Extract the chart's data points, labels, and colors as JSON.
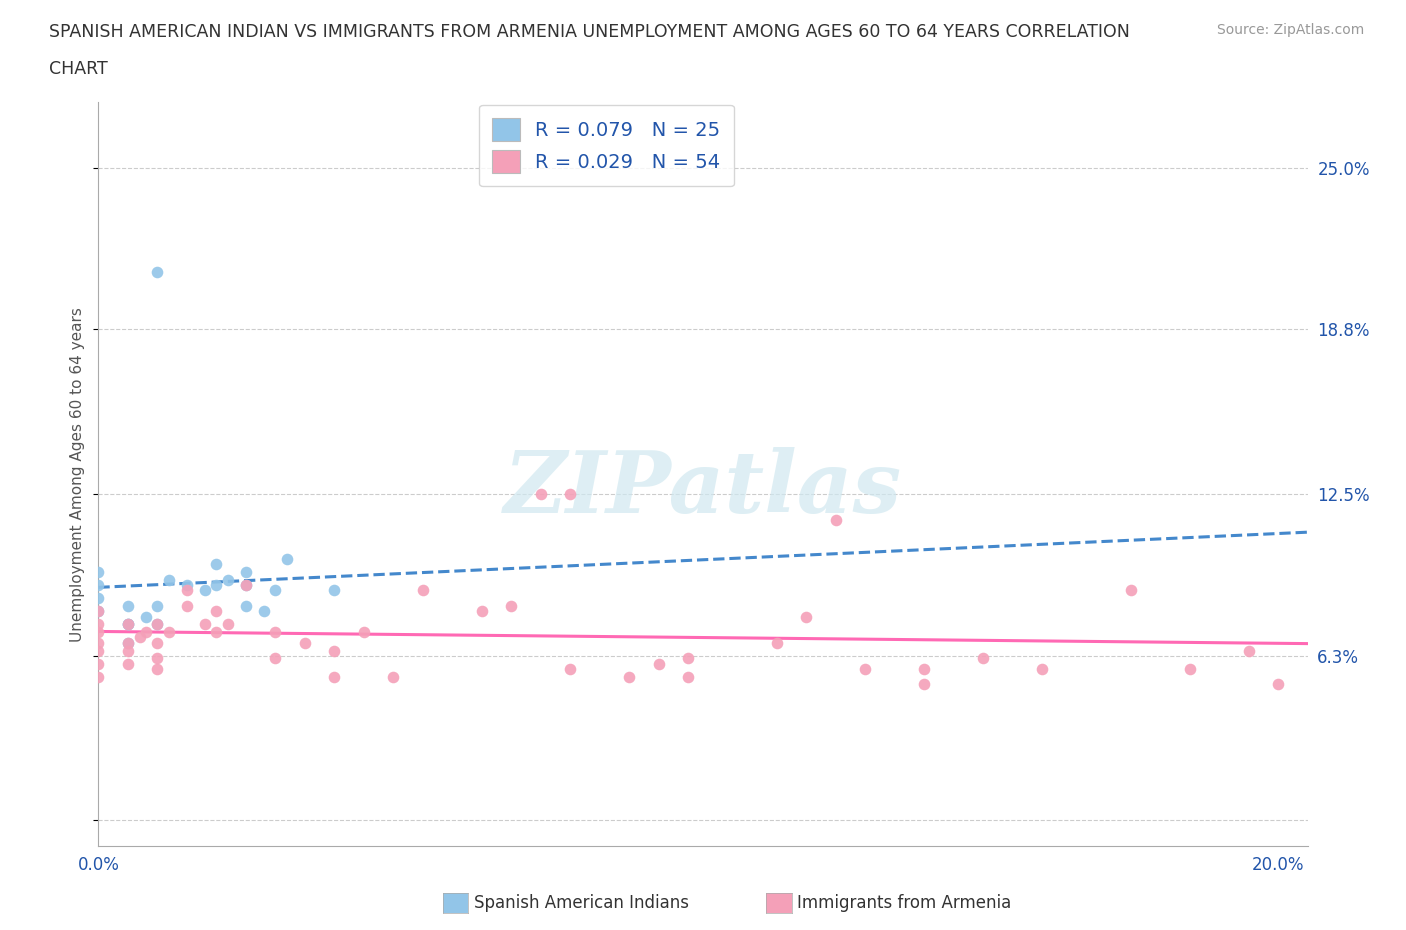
{
  "title_line1": "SPANISH AMERICAN INDIAN VS IMMIGRANTS FROM ARMENIA UNEMPLOYMENT AMONG AGES 60 TO 64 YEARS CORRELATION",
  "title_line2": "CHART",
  "source": "Source: ZipAtlas.com",
  "ylabel": "Unemployment Among Ages 60 to 64 years",
  "xlim": [
    0.0,
    0.205
  ],
  "ylim": [
    -0.01,
    0.275
  ],
  "ytick_vals": [
    0.0,
    0.063,
    0.125,
    0.188,
    0.25
  ],
  "ytick_labels": [
    "",
    "6.3%",
    "12.5%",
    "18.8%",
    "25.0%"
  ],
  "xtick_vals": [
    0.0,
    0.05,
    0.1,
    0.15,
    0.2
  ],
  "xtick_labels": [
    "0.0%",
    "",
    "",
    "",
    "20.0%"
  ],
  "background_color": "#ffffff",
  "watermark": "ZIPatlas",
  "legend_line1_r": "R = 0.079",
  "legend_line1_n": "N = 25",
  "legend_line2_r": "R = 0.029",
  "legend_line2_n": "N = 54",
  "color_blue": "#92C5E8",
  "color_pink": "#F4A0B8",
  "trendline_blue": "#4488CC",
  "trendline_pink": "#FF69B4",
  "label_blue": "Spanish American Indians",
  "label_pink": "Immigrants from Armenia",
  "blue_x": [
    0.005,
    0.0,
    0.0,
    0.0,
    0.0,
    0.005,
    0.005,
    0.005,
    0.008,
    0.01,
    0.01,
    0.012,
    0.015,
    0.018,
    0.02,
    0.02,
    0.022,
    0.025,
    0.025,
    0.025,
    0.028,
    0.03,
    0.032,
    0.04,
    0.01
  ],
  "blue_y": [
    0.075,
    0.09,
    0.085,
    0.08,
    0.095,
    0.068,
    0.075,
    0.082,
    0.078,
    0.075,
    0.082,
    0.092,
    0.09,
    0.088,
    0.09,
    0.098,
    0.092,
    0.09,
    0.082,
    0.095,
    0.08,
    0.088,
    0.1,
    0.088,
    0.21
  ],
  "pink_x": [
    0.0,
    0.0,
    0.0,
    0.0,
    0.0,
    0.0,
    0.0,
    0.005,
    0.005,
    0.005,
    0.005,
    0.007,
    0.008,
    0.01,
    0.01,
    0.01,
    0.01,
    0.012,
    0.015,
    0.015,
    0.018,
    0.02,
    0.02,
    0.022,
    0.025,
    0.03,
    0.03,
    0.035,
    0.04,
    0.04,
    0.045,
    0.05,
    0.055,
    0.065,
    0.07,
    0.075,
    0.08,
    0.09,
    0.095,
    0.1,
    0.115,
    0.125,
    0.14,
    0.15,
    0.16,
    0.175,
    0.185,
    0.195,
    0.2,
    0.1,
    0.12,
    0.13,
    0.14,
    0.08
  ],
  "pink_y": [
    0.055,
    0.06,
    0.065,
    0.068,
    0.072,
    0.075,
    0.08,
    0.06,
    0.065,
    0.068,
    0.075,
    0.07,
    0.072,
    0.058,
    0.062,
    0.068,
    0.075,
    0.072,
    0.082,
    0.088,
    0.075,
    0.072,
    0.08,
    0.075,
    0.09,
    0.062,
    0.072,
    0.068,
    0.055,
    0.065,
    0.072,
    0.055,
    0.088,
    0.08,
    0.082,
    0.125,
    0.058,
    0.055,
    0.06,
    0.055,
    0.068,
    0.115,
    0.058,
    0.062,
    0.058,
    0.088,
    0.058,
    0.065,
    0.052,
    0.062,
    0.078,
    0.058,
    0.052,
    0.125
  ]
}
